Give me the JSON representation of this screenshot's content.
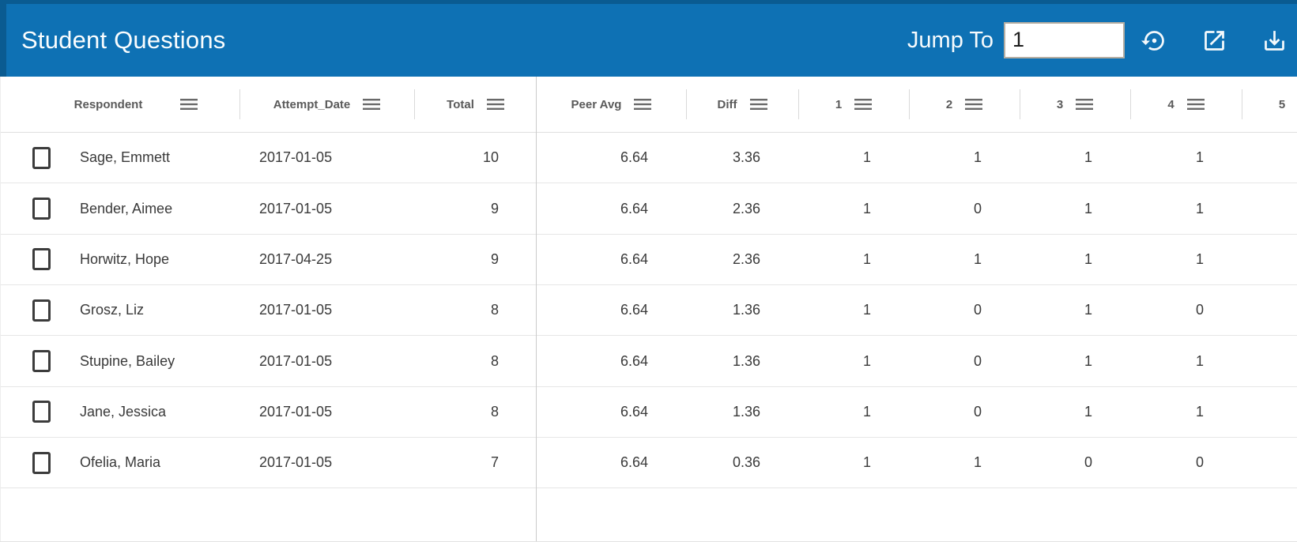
{
  "header_bar": {
    "title": "Student Questions",
    "jump_to": {
      "label": "Jump To",
      "value": "1"
    },
    "action_icons": [
      {
        "name": "restore-icon",
        "meaning": "restore / reset view"
      },
      {
        "name": "open-in-new-icon",
        "meaning": "open in new window"
      },
      {
        "name": "download-icon",
        "meaning": "download / export"
      }
    ]
  },
  "table": {
    "columns": [
      {
        "label": "Respondent"
      },
      {
        "label": "Attempt_Date"
      },
      {
        "label": "Total"
      },
      {
        "label": "Peer Avg"
      },
      {
        "label": "Diff"
      },
      {
        "label": "1"
      },
      {
        "label": "2"
      },
      {
        "label": "3"
      },
      {
        "label": "4"
      },
      {
        "label": "5"
      }
    ],
    "rows": [
      {
        "respondent": "Sage, Emmett",
        "attempt_date": "2017-01-05",
        "total": "10",
        "peer_avg": "6.64",
        "diff": "3.36",
        "q1": "1",
        "q2": "1",
        "q3": "1",
        "q4": "1",
        "q5": ""
      },
      {
        "respondent": "Bender, Aimee",
        "attempt_date": "2017-01-05",
        "total": "9",
        "peer_avg": "6.64",
        "diff": "2.36",
        "q1": "1",
        "q2": "0",
        "q3": "1",
        "q4": "1",
        "q5": ""
      },
      {
        "respondent": "Horwitz, Hope",
        "attempt_date": "2017-04-25",
        "total": "9",
        "peer_avg": "6.64",
        "diff": "2.36",
        "q1": "1",
        "q2": "1",
        "q3": "1",
        "q4": "1",
        "q5": ""
      },
      {
        "respondent": "Grosz, Liz",
        "attempt_date": "2017-01-05",
        "total": "8",
        "peer_avg": "6.64",
        "diff": "1.36",
        "q1": "1",
        "q2": "0",
        "q3": "1",
        "q4": "0",
        "q5": ""
      },
      {
        "respondent": "Stupine, Bailey",
        "attempt_date": "2017-01-05",
        "total": "8",
        "peer_avg": "6.64",
        "diff": "1.36",
        "q1": "1",
        "q2": "0",
        "q3": "1",
        "q4": "1",
        "q5": ""
      },
      {
        "respondent": "Jane, Jessica",
        "attempt_date": "2017-01-05",
        "total": "8",
        "peer_avg": "6.64",
        "diff": "1.36",
        "q1": "1",
        "q2": "0",
        "q3": "1",
        "q4": "1",
        "q5": ""
      },
      {
        "respondent": "Ofelia, Maria",
        "attempt_date": "2017-01-05",
        "total": "7",
        "peer_avg": "6.64",
        "diff": "0.36",
        "q1": "1",
        "q2": "1",
        "q3": "0",
        "q4": "0",
        "q5": ""
      }
    ]
  },
  "colors": {
    "header_blue": "#0e71b4",
    "header_blue_dark": "#0a5b91",
    "col_header_text": "#5a5a5a",
    "body_text": "#3a3a3a",
    "row_divider": "#e6e6e6",
    "header_divider": "#dadada",
    "pinned_divider": "#cbcbcb",
    "checkbox_border": "#3c3c3c",
    "input_border": "#b6aea2",
    "icon_gray": "#696969"
  }
}
